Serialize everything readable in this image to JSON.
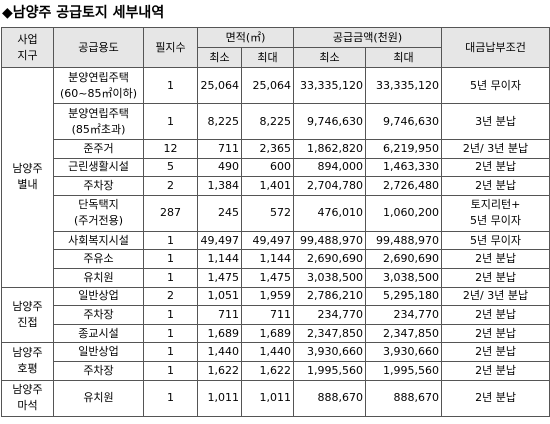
{
  "title": "◆남양주 공급토지 세부내역",
  "table": {
    "header": {
      "district": "사업\n지구",
      "use": "공급용도",
      "lots": "필지수",
      "area": "면적(㎡)",
      "amount": "공급금액(천원)",
      "terms": "대금납부조건",
      "sub": [
        "최소",
        "최대",
        "최소",
        "최대"
      ]
    },
    "groups": [
      {
        "district": "남양주\n별내",
        "rows": [
          [
            "분양연립주택\n(60~85㎡이하)",
            "1",
            "25,064",
            "25,064",
            "33,335,120",
            "33,335,120",
            "5년 무이자"
          ],
          [
            "분양연립주택\n(85㎡초과)",
            "1",
            "8,225",
            "8,225",
            "9,746,630",
            "9,746,630",
            "3년 분납"
          ],
          [
            "준주거",
            "12",
            "711",
            "2,365",
            "1,862,820",
            "6,219,950",
            "2년/ 3년 분납"
          ],
          [
            "근린생활시설",
            "5",
            "490",
            "600",
            "894,000",
            "1,463,330",
            "2년 분납"
          ],
          [
            "주차장",
            "2",
            "1,384",
            "1,401",
            "2,704,780",
            "2,726,480",
            "2년 분납"
          ],
          [
            "단독택지\n(주거전용)",
            "287",
            "245",
            "572",
            "476,010",
            "1,060,200",
            "토지리턴+\n5년 무이자"
          ],
          [
            "사회복지시설",
            "1",
            "49,497",
            "49,497",
            "99,488,970",
            "99,488,970",
            "5년 무이자"
          ],
          [
            "주유소",
            "1",
            "1,144",
            "1,144",
            "2,690,690",
            "2,690,690",
            "2년 분납"
          ],
          [
            "유치원",
            "1",
            "1,475",
            "1,475",
            "3,038,500",
            "3,038,500",
            "2년 분납"
          ]
        ]
      },
      {
        "district": "남양주\n진접",
        "rows": [
          [
            "일반상업",
            "2",
            "1,051",
            "1,959",
            "2,786,210",
            "5,295,180",
            "2년/ 3년 분납"
          ],
          [
            "주차장",
            "1",
            "711",
            "711",
            "234,770",
            "234,770",
            "2년 분납"
          ],
          [
            "종교시설",
            "1",
            "1,689",
            "1,689",
            "2,347,850",
            "2,347,850",
            "2년 분납"
          ]
        ]
      },
      {
        "district": "남양주\n호평",
        "rows": [
          [
            "일반상업",
            "1",
            "1,440",
            "1,440",
            "3,930,660",
            "3,930,660",
            "2년 분납"
          ],
          [
            "주차장",
            "1",
            "1,622",
            "1,622",
            "1,995,560",
            "1,995,560",
            "2년 분납"
          ]
        ]
      },
      {
        "district": "남양주\n마석",
        "rows": [
          [
            "유치원",
            "1",
            "1,011",
            "1,011",
            "888,670",
            "888,670",
            "2년 분납"
          ]
        ]
      }
    ]
  }
}
